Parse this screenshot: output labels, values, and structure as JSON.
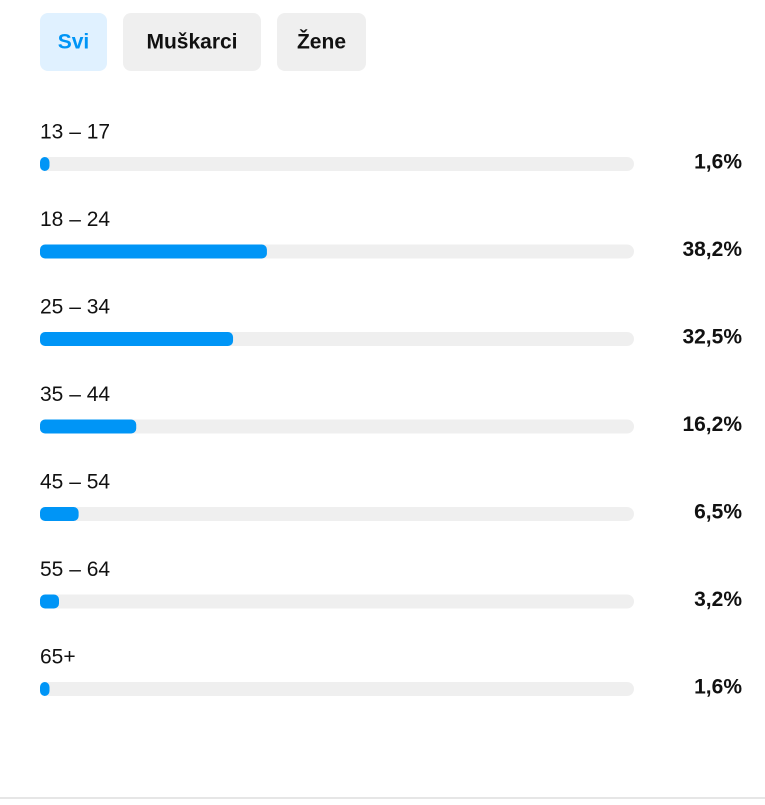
{
  "tabs": [
    {
      "label": "Svi",
      "active": true
    },
    {
      "label": "Muškarci",
      "active": false
    },
    {
      "label": "Žene",
      "active": false
    }
  ],
  "chart_data": {
    "type": "bar",
    "orientation": "horizontal",
    "categories": [
      "13 – 17",
      "18 – 24",
      "25 – 34",
      "35 – 44",
      "45 – 54",
      "55 – 64",
      "65+"
    ],
    "values": [
      1.6,
      38.2,
      32.5,
      16.2,
      6.5,
      3.2,
      1.6
    ],
    "value_labels": [
      "1,6%",
      "38,2%",
      "32,5%",
      "16,2%",
      "6,5%",
      "3,2%",
      "1,6%"
    ],
    "color": "#0095f6",
    "track_color": "#efefef",
    "xlim": [
      0,
      100
    ]
  }
}
